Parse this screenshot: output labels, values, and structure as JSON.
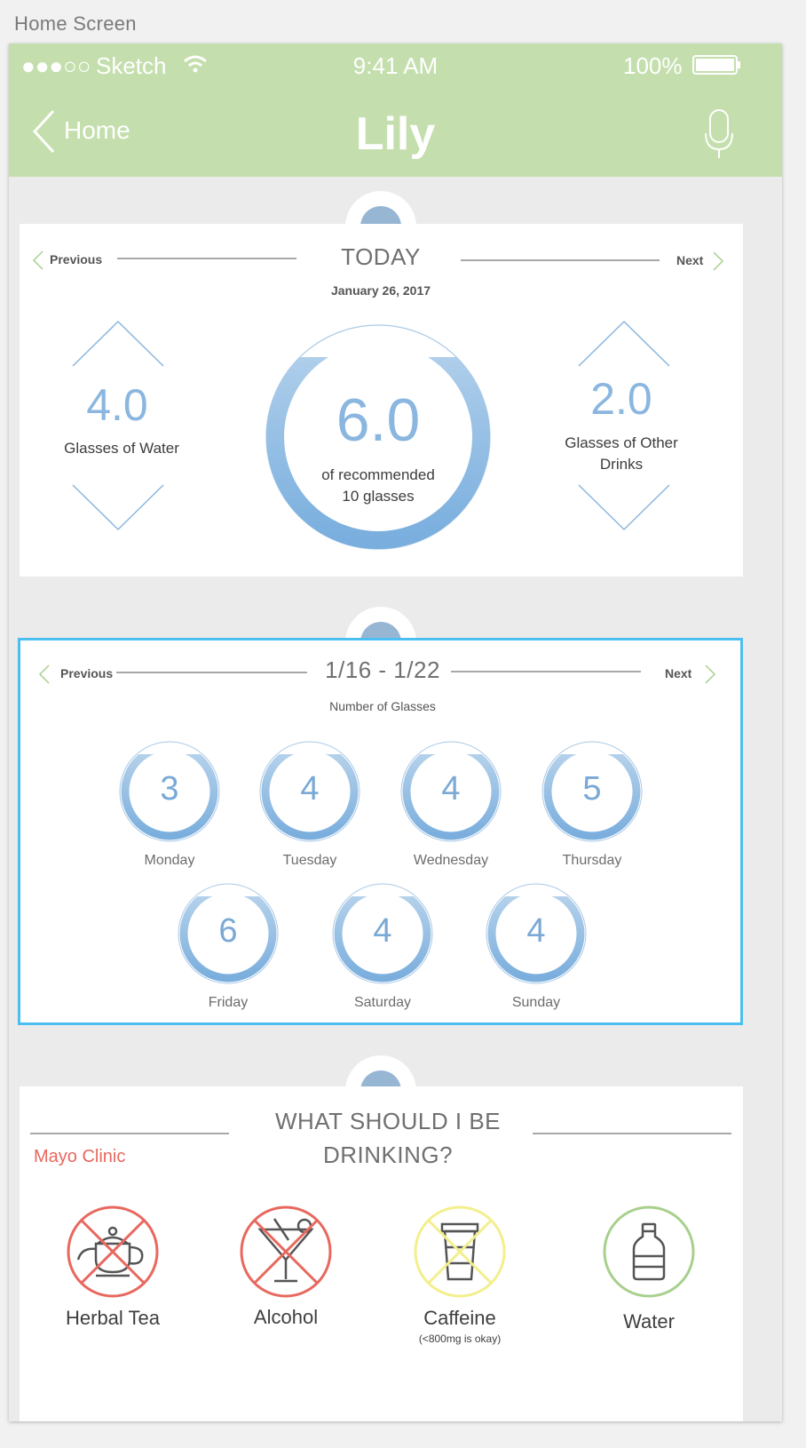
{
  "canvas": {
    "label": "Home Screen"
  },
  "status_bar": {
    "carrier": "Sketch",
    "time": "9:41 AM",
    "battery": "100%"
  },
  "nav": {
    "back_label": "Home",
    "title": "Lily"
  },
  "today": {
    "prev_label": "Previous",
    "next_label": "Next",
    "title": "TODAY",
    "date": "January 26, 2017",
    "water": {
      "value": "4.0",
      "label": "Glasses of Water"
    },
    "total": {
      "value": "6.0",
      "caption_line1": "of recommended",
      "caption_line2": "10 glasses",
      "progress": 0.6
    },
    "other": {
      "value": "2.0",
      "label_line1": "Glasses of Other",
      "label_line2": "Drinks"
    }
  },
  "week": {
    "prev_label": "Previous",
    "next_label": "Next",
    "range": "1/16 - 1/22",
    "subtitle": "Number of Glasses",
    "days": [
      {
        "name": "Monday",
        "count": "3"
      },
      {
        "name": "Tuesday",
        "count": "4"
      },
      {
        "name": "Wednesday",
        "count": "4"
      },
      {
        "name": "Thursday",
        "count": "5"
      },
      {
        "name": "Friday",
        "count": "6"
      },
      {
        "name": "Saturday",
        "count": "4"
      },
      {
        "name": "Sunday",
        "count": "4"
      }
    ]
  },
  "drinks": {
    "title_line1": "WHAT SHOULD I BE",
    "title_line2": "DRINKING?",
    "source": "Mayo Clinic",
    "items": [
      {
        "label": "Herbal Tea",
        "icon": "teapot-icon",
        "status_color": "#e8685e"
      },
      {
        "label": "Alcohol",
        "icon": "cocktail-icon",
        "status_color": "#e8685e"
      },
      {
        "label": "Caffeine",
        "note": "(<800mg is okay)",
        "icon": "coffee-cup-icon",
        "status_color": "#f3ef8c"
      },
      {
        "label": "Water",
        "icon": "water-bottle-icon",
        "status_color": "#a8d08d"
      }
    ]
  },
  "colors": {
    "nav_green": "#c4dfad",
    "accent_blue": "#8ab6df",
    "selection_blue": "#4cbff2",
    "danger_red": "#e8685e"
  }
}
